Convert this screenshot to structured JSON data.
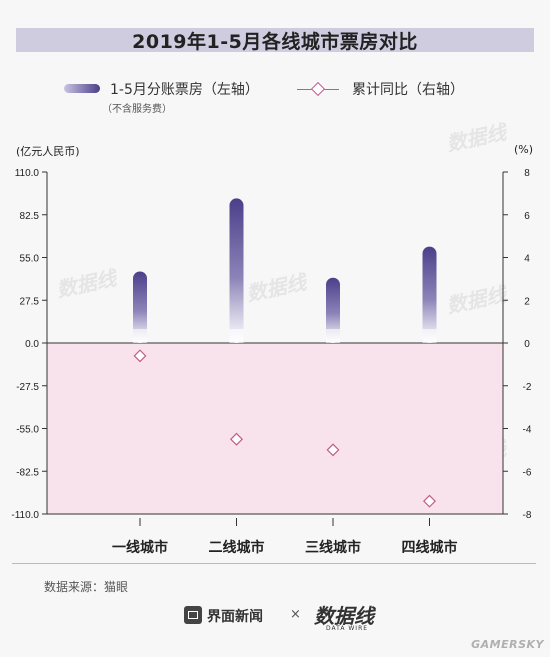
{
  "title": "2019年1-5月各线城市票房对比",
  "legend": {
    "bar_label": "1-5月分账票房（左轴）",
    "bar_sublabel": "（不含服务费）",
    "line_label": "累计同比（右轴）"
  },
  "left_unit": "(亿元人民币)",
  "right_unit": "(%)",
  "source": "数据来源：猫眼",
  "footer": {
    "brand": "界面新闻",
    "times": "×",
    "partner": "数据线",
    "partner_sub": "DATA WIRE"
  },
  "watermark_text": "数据线",
  "corner_mark": "GAMERSKY",
  "colors": {
    "bar_top": "#4b3f8a",
    "bar_bottom": "#ffffff",
    "line": "#c25b8b",
    "negative_region": "#f8e3ec"
  },
  "chart_data": {
    "type": "bar",
    "categories": [
      "一线城市",
      "二线城市",
      "三线城市",
      "四线城市"
    ],
    "series": [
      {
        "name": "1-5月分账票房（左轴）",
        "axis": "left",
        "type": "bar",
        "values": [
          46,
          93,
          42,
          62
        ]
      },
      {
        "name": "累计同比（右轴）",
        "axis": "right",
        "type": "scatter",
        "values": [
          -0.6,
          -4.5,
          -5.0,
          -7.4
        ]
      }
    ],
    "left_axis": {
      "ylim": [
        -110,
        110
      ],
      "ticks": [
        "110.0",
        "82.5",
        "55.0",
        "27.5",
        "0.0",
        "-27.5",
        "-55.0",
        "-82.5",
        "-110.0"
      ]
    },
    "right_axis": {
      "ylim": [
        -8,
        8
      ],
      "ticks": [
        "8",
        "6",
        "4",
        "2",
        "0",
        "-2",
        "-4",
        "-6",
        "-8"
      ]
    },
    "grid": false,
    "legend_position": "top"
  }
}
